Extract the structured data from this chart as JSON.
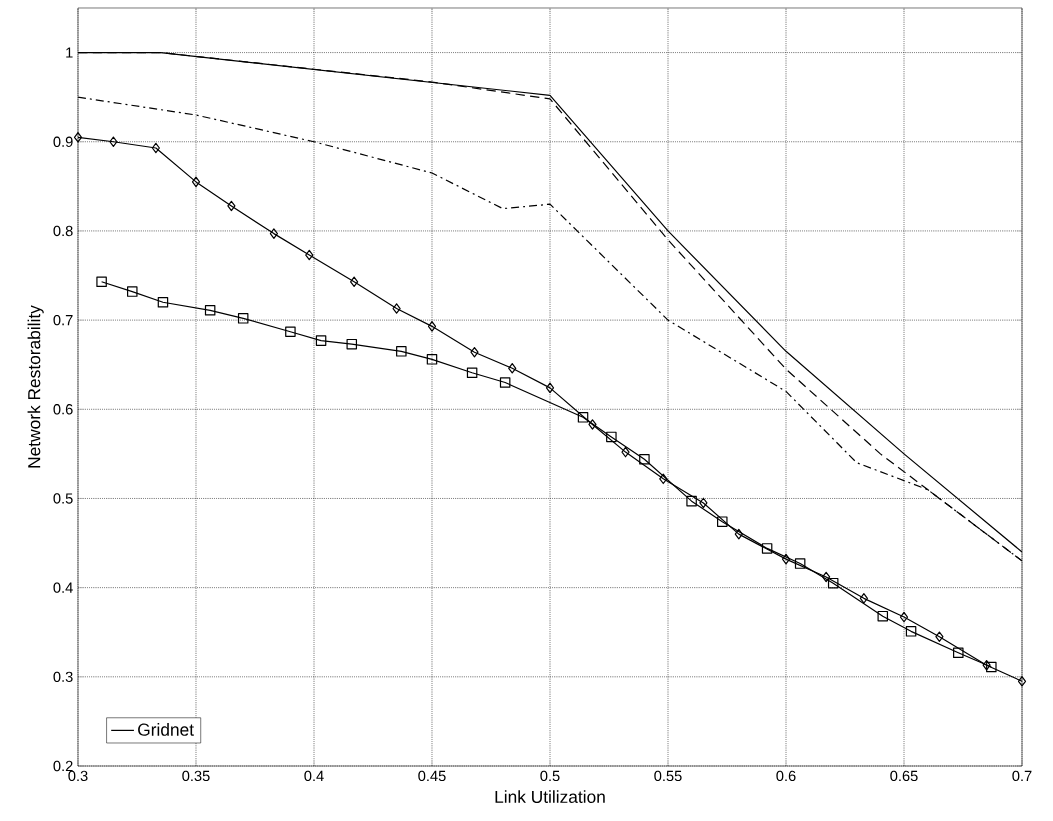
{
  "chart_data": {
    "type": "line",
    "xlabel": "Link Utilization",
    "ylabel": "Network Restorability",
    "xlim": [
      0.3,
      0.7
    ],
    "ylim": [
      0.2,
      1.05
    ],
    "xticks": [
      0.3,
      0.35,
      0.4,
      0.45,
      0.5,
      0.55,
      0.6,
      0.65,
      0.7
    ],
    "yticks": [
      0.2,
      0.3,
      0.4,
      0.5,
      0.6,
      0.7,
      0.8,
      0.9,
      1
    ],
    "grid": true,
    "legend": "bottom left",
    "series": [
      {
        "name": "Gridnet",
        "color": "#000000",
        "line_style": "solid",
        "marker": "none",
        "x": [
          0.3,
          0.335,
          0.5,
          0.55,
          0.6,
          0.65,
          0.7
        ],
        "values": [
          1.0,
          1.0,
          0.952,
          0.8,
          0.665,
          0.55,
          0.44
        ]
      },
      {
        "color": "#000000",
        "line_style": "dashed",
        "marker": "none",
        "x": [
          0.3,
          0.335,
          0.45,
          0.5,
          0.55,
          0.6,
          0.64,
          0.7
        ],
        "values": [
          1.0,
          1.0,
          0.967,
          0.948,
          0.79,
          0.645,
          0.55,
          0.43
        ]
      },
      {
        "color": "#000000",
        "line_style": "solid",
        "marker": "diamond",
        "x": [
          0.3,
          0.315,
          0.333,
          0.35,
          0.365,
          0.383,
          0.398,
          0.417,
          0.435,
          0.45,
          0.468,
          0.484,
          0.5,
          0.518,
          0.532,
          0.548,
          0.565,
          0.58,
          0.6,
          0.617,
          0.633,
          0.65,
          0.665,
          0.685,
          0.7
        ],
        "values": [
          0.905,
          0.9,
          0.893,
          0.855,
          0.828,
          0.797,
          0.773,
          0.743,
          0.713,
          0.693,
          0.664,
          0.646,
          0.624,
          0.583,
          0.552,
          0.522,
          0.495,
          0.46,
          0.432,
          0.412,
          0.388,
          0.367,
          0.345,
          0.313,
          0.295
        ]
      },
      {
        "color": "#000000",
        "line_style": "solid",
        "marker": "square",
        "x": [
          0.31,
          0.323,
          0.336,
          0.356,
          0.37,
          0.39,
          0.403,
          0.416,
          0.437,
          0.45,
          0.467,
          0.481,
          0.514,
          0.526,
          0.54,
          0.56,
          0.573,
          0.592,
          0.606,
          0.62,
          0.641,
          0.653,
          0.673,
          0.687
        ],
        "values": [
          0.743,
          0.732,
          0.72,
          0.711,
          0.702,
          0.687,
          0.677,
          0.673,
          0.665,
          0.656,
          0.641,
          0.63,
          0.591,
          0.569,
          0.544,
          0.497,
          0.474,
          0.444,
          0.427,
          0.405,
          0.368,
          0.351,
          0.327,
          0.311
        ]
      },
      {
        "color": "#000000",
        "line_style": "dashdot",
        "marker": "none",
        "x": [
          0.3,
          0.35,
          0.4,
          0.45,
          0.48,
          0.5,
          0.55,
          0.6,
          0.63,
          0.66,
          0.7
        ],
        "values": [
          0.95,
          0.93,
          0.9,
          0.865,
          0.825,
          0.83,
          0.7,
          0.62,
          0.54,
          0.51,
          0.43
        ]
      }
    ]
  }
}
